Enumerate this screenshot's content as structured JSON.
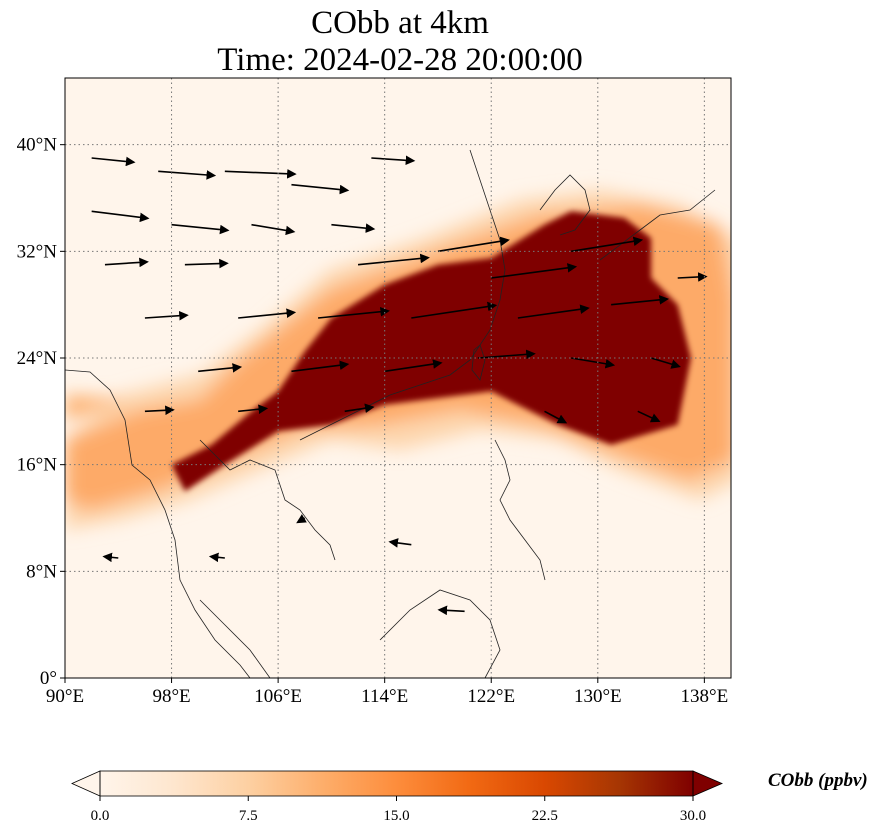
{
  "title": {
    "line1": "CObb at 4km",
    "line2": "Time: 2024-02-28 20:00:00"
  },
  "map": {
    "lon_range": [
      90,
      140
    ],
    "lat_range": [
      0,
      45
    ],
    "lon_ticks": [
      {
        "value": 90,
        "label": "90°E"
      },
      {
        "value": 98,
        "label": "98°E"
      },
      {
        "value": 106,
        "label": "106°E"
      },
      {
        "value": 114,
        "label": "114°E"
      },
      {
        "value": 122,
        "label": "122°E"
      },
      {
        "value": 130,
        "label": "130°E"
      },
      {
        "value": 138,
        "label": "138°E"
      }
    ],
    "lat_ticks": [
      {
        "value": 0,
        "label": "0°"
      },
      {
        "value": 8,
        "label": "8°N"
      },
      {
        "value": 16,
        "label": "16°N"
      },
      {
        "value": 24,
        "label": "24°N"
      },
      {
        "value": 32,
        "label": "32°N"
      },
      {
        "value": 40,
        "label": "40°N"
      }
    ],
    "gridlines": "dotted",
    "colormap": [
      "#fff5eb",
      "#fee6ce",
      "#fdd0a2",
      "#fdae6b",
      "#fd8d3c",
      "#f16913",
      "#d94801",
      "#a63603",
      "#7f0000"
    ],
    "background_color": "#fff5eb",
    "plume_core_color": "#7f0000",
    "plume_core_outline": [
      [
        98,
        16
      ],
      [
        101,
        17.5
      ],
      [
        104,
        20
      ],
      [
        106,
        21.5
      ],
      [
        108,
        24.5
      ],
      [
        110,
        27
      ],
      [
        114,
        29.5
      ],
      [
        118,
        31
      ],
      [
        122,
        31.5
      ],
      [
        126,
        34
      ],
      [
        128,
        35
      ],
      [
        132,
        34.5
      ],
      [
        134,
        33
      ],
      [
        134,
        30
      ],
      [
        136,
        28
      ],
      [
        137,
        24
      ],
      [
        136,
        19
      ],
      [
        131,
        17.5
      ],
      [
        127,
        19
      ],
      [
        122,
        21.5
      ],
      [
        118,
        21
      ],
      [
        114,
        20.5
      ],
      [
        110,
        19
      ],
      [
        106,
        18.5
      ],
      [
        102,
        16
      ],
      [
        99,
        14
      ]
    ],
    "wind_vectors": [
      {
        "lon": 92,
        "lat": 39,
        "u": 3,
        "v": -0.3
      },
      {
        "lon": 97,
        "lat": 38,
        "u": 4,
        "v": -0.3
      },
      {
        "lon": 102,
        "lat": 38,
        "u": 5,
        "v": -0.2
      },
      {
        "lon": 107,
        "lat": 37,
        "u": 4,
        "v": -0.4
      },
      {
        "lon": 113,
        "lat": 39,
        "u": 3,
        "v": -0.2
      },
      {
        "lon": 92,
        "lat": 35,
        "u": 4,
        "v": -0.5
      },
      {
        "lon": 98,
        "lat": 34,
        "u": 4,
        "v": -0.4
      },
      {
        "lon": 104,
        "lat": 34,
        "u": 3,
        "v": -0.5
      },
      {
        "lon": 110,
        "lat": 34,
        "u": 3,
        "v": -0.3
      },
      {
        "lon": 93,
        "lat": 31,
        "u": 3,
        "v": 0.2
      },
      {
        "lon": 99,
        "lat": 31,
        "u": 3,
        "v": 0.1
      },
      {
        "lon": 112,
        "lat": 31,
        "u": 5,
        "v": 0.5
      },
      {
        "lon": 118,
        "lat": 32,
        "u": 5,
        "v": 0.8
      },
      {
        "lon": 122,
        "lat": 30,
        "u": 6,
        "v": 0.8
      },
      {
        "lon": 128,
        "lat": 32,
        "u": 5,
        "v": 0.8
      },
      {
        "lon": 96,
        "lat": 27,
        "u": 3,
        "v": 0.2
      },
      {
        "lon": 103,
        "lat": 27,
        "u": 4,
        "v": 0.4
      },
      {
        "lon": 109,
        "lat": 27,
        "u": 5,
        "v": 0.5
      },
      {
        "lon": 116,
        "lat": 27,
        "u": 6,
        "v": 0.9
      },
      {
        "lon": 124,
        "lat": 27,
        "u": 5,
        "v": 0.7
      },
      {
        "lon": 131,
        "lat": 28,
        "u": 4,
        "v": 0.4
      },
      {
        "lon": 136,
        "lat": 30,
        "u": 2,
        "v": 0.1
      },
      {
        "lon": 100,
        "lat": 23,
        "u": 3,
        "v": 0.3
      },
      {
        "lon": 107,
        "lat": 23,
        "u": 4,
        "v": 0.5
      },
      {
        "lon": 114,
        "lat": 23,
        "u": 4,
        "v": 0.6
      },
      {
        "lon": 121,
        "lat": 24,
        "u": 4,
        "v": 0.3
      },
      {
        "lon": 128,
        "lat": 24,
        "u": 3,
        "v": -0.5
      },
      {
        "lon": 134,
        "lat": 24,
        "u": 2,
        "v": -0.6
      },
      {
        "lon": 96,
        "lat": 20,
        "u": 2,
        "v": 0.1
      },
      {
        "lon": 103,
        "lat": 20,
        "u": 2,
        "v": 0.2
      },
      {
        "lon": 111,
        "lat": 20,
        "u": 2,
        "v": 0.3
      },
      {
        "lon": 126,
        "lat": 20,
        "u": 1.5,
        "v": -0.8
      },
      {
        "lon": 133,
        "lat": 20,
        "u": 1.5,
        "v": -0.7
      },
      {
        "lon": 108,
        "lat": 12,
        "u": -0.5,
        "v": -0.3
      },
      {
        "lon": 116,
        "lat": 10,
        "u": -1.5,
        "v": 0.2
      },
      {
        "lon": 120,
        "lat": 5,
        "u": -1.8,
        "v": 0.1
      },
      {
        "lon": 102,
        "lat": 9,
        "u": -1.0,
        "v": 0.1
      },
      {
        "lon": 94,
        "lat": 9,
        "u": -1.0,
        "v": 0.1
      }
    ]
  },
  "colorbar": {
    "min": 0,
    "max": 30,
    "ticks": [
      "0.0",
      "7.5",
      "15.0",
      "22.5",
      "30.0"
    ],
    "label": "CObb (ppbv)",
    "extend": "both"
  }
}
